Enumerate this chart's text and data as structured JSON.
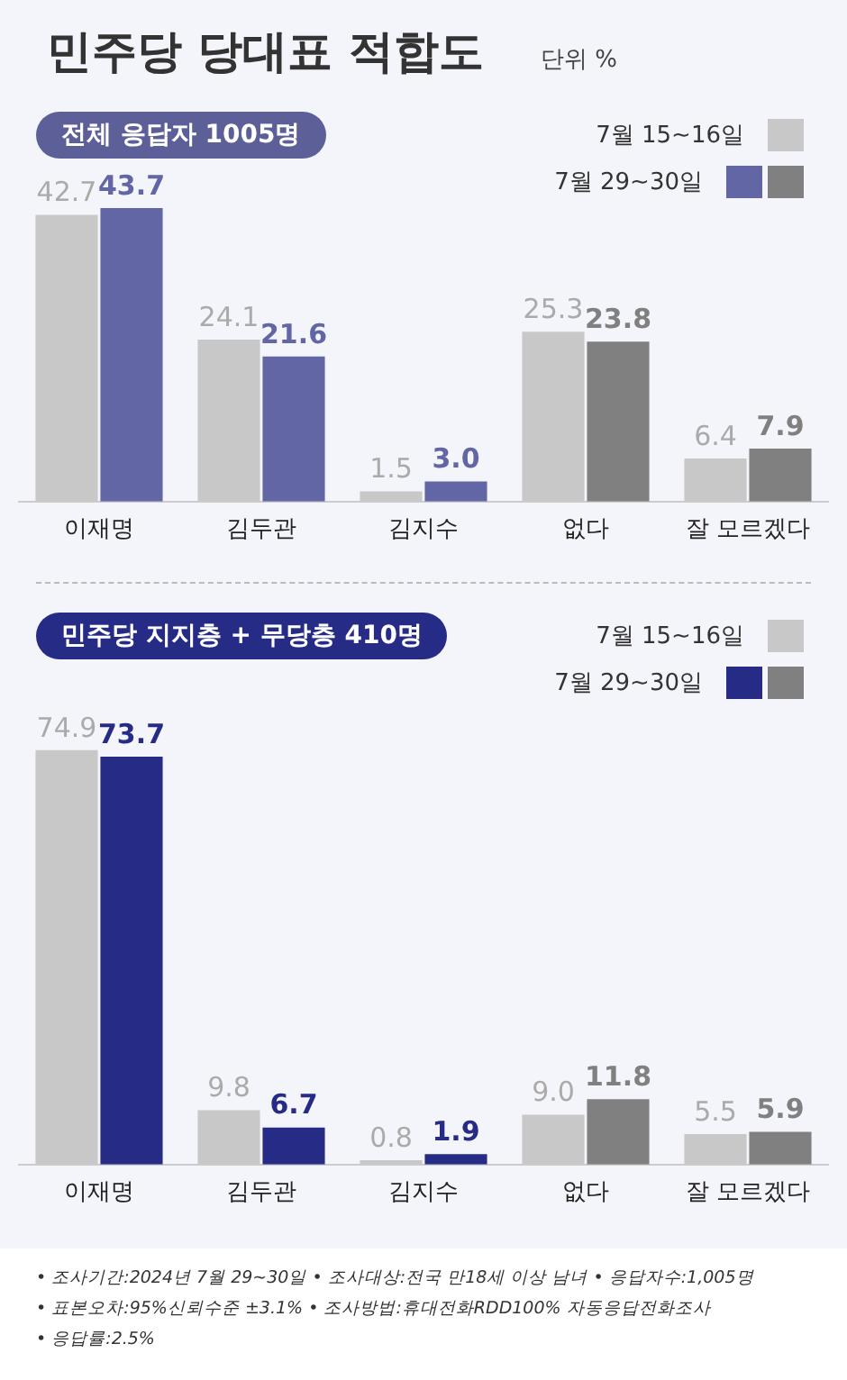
{
  "chart_data": [
    {
      "type": "bar",
      "title": "민주당 당대표 적합도",
      "subtitle": "단위 %",
      "annotations": [
        "전체 응답자 1005명"
      ],
      "categories": [
        "이재명",
        "김두관",
        "김지수",
        "없다",
        "잘 모르겠다"
      ],
      "series": [
        {
          "name": "7월 15~16일",
          "color": "#c8c8c8",
          "values": [
            42.7,
            24.1,
            1.5,
            25.3,
            6.4
          ]
        },
        {
          "name": "7월 29~30일",
          "colors": [
            "#6366a5",
            "#6366a5",
            "#6366a5",
            "#808080",
            "#808080"
          ],
          "values": [
            43.7,
            21.6,
            3.0,
            23.8,
            7.9
          ],
          "value_labels": [
            "43.7",
            "21.6",
            "3.0",
            "23.8",
            "7.9"
          ]
        }
      ],
      "data_labels": true,
      "legend": "top right",
      "tick_labels": "x"
    },
    {
      "type": "bar",
      "title": "민주당 지지층 + 무당층 410명",
      "categories": [
        "이재명",
        "김두관",
        "김지수",
        "없다",
        "잘 모르겠다"
      ],
      "series": [
        {
          "name": "7월 15~16일",
          "color": "#c8c8c8",
          "values": [
            74.9,
            9.8,
            0.8,
            9.0,
            5.5
          ],
          "value_labels": [
            "74.9",
            "9.8",
            "0.8",
            "9.0",
            "5.5"
          ]
        },
        {
          "name": "7월 29~30일",
          "colors": [
            "#262c86",
            "#262c86",
            "#262c86",
            "#808080",
            "#808080"
          ],
          "values": [
            73.7,
            6.7,
            1.9,
            11.8,
            5.9
          ],
          "value_labels": [
            "73.7",
            "6.7",
            "1.9",
            "11.8",
            "5.9"
          ]
        }
      ],
      "data_labels": true,
      "legend": "top right",
      "tick_labels": "x",
      "annotations": [
        "• 조사기간:2024년 7월 29~30일  • 조사대상:전국 만18세 이상 남녀  • 응답자수:1,005명",
        "• 표본오차:95%신뢰수준 ±3.1%  • 조사방법:휴대전화RDD100% 자동응답전화조사",
        "• 응답률:2.5%"
      ]
    }
  ]
}
